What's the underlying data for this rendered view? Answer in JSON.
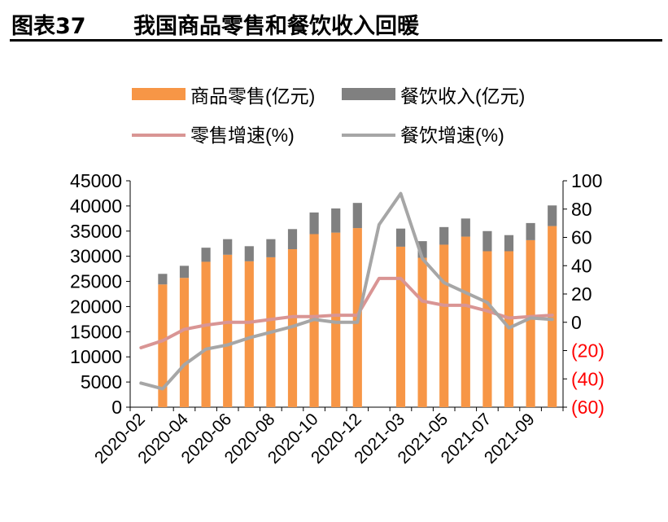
{
  "header": {
    "figure_label": "图表37",
    "title": "我国商品零售和餐饮收入回暖"
  },
  "colors": {
    "retail_bar": "#F79646",
    "catering_bar": "#808080",
    "retail_growth_line": "#D99594",
    "catering_growth_line": "#A6A6A6",
    "negative_tick": "#FF0000"
  },
  "chart_data": {
    "type": "bar",
    "stacked": true,
    "x_tick_labels": [
      "2020-02",
      "2020-04",
      "2020-06",
      "2020-08",
      "2020-10",
      "2020-12",
      "2021-03",
      "2021-05",
      "2021-07",
      "2021-09"
    ],
    "x": [
      "2020-02",
      "2020-03",
      "2020-04",
      "2020-05",
      "2020-06",
      "2020-07",
      "2020-08",
      "2020-09",
      "2020-10",
      "2020-11",
      "2020-12",
      "2021-01",
      "2021-03",
      "2021-04",
      "2021-05",
      "2021-06",
      "2021-07",
      "2021-08",
      "2021-09",
      "2021-10"
    ],
    "y_left": {
      "lim": [
        0,
        45000
      ],
      "ticks": [
        "0",
        "5000",
        "10000",
        "15000",
        "20000",
        "25000",
        "30000",
        "35000",
        "40000",
        "45000"
      ]
    },
    "y_right": {
      "lim": [
        -60,
        100
      ],
      "ticks": [
        "(60)",
        "(40)",
        "(20)",
        "0",
        "20",
        "40",
        "60",
        "80",
        "100"
      ]
    },
    "grid": false,
    "legend": "top",
    "series": [
      {
        "name": "商品零售(亿元)",
        "type": "bar",
        "axis": "left",
        "values": [
          null,
          24400,
          25700,
          28900,
          30300,
          29000,
          29800,
          31400,
          34400,
          34700,
          35600,
          null,
          31900,
          29700,
          32300,
          33900,
          31000,
          31000,
          33200,
          36000
        ]
      },
      {
        "name": "餐饮收入(亿元)",
        "type": "bar",
        "axis": "left",
        "values": [
          null,
          2100,
          2400,
          2800,
          3100,
          3000,
          3600,
          4000,
          4300,
          4800,
          5000,
          null,
          3600,
          3300,
          3500,
          3600,
          4000,
          3200,
          3400,
          4100
        ]
      },
      {
        "name": "零售增速(%)",
        "type": "line",
        "axis": "right",
        "values": [
          -18,
          -13,
          -5,
          -2,
          0,
          0,
          2,
          4,
          4,
          5,
          5,
          31,
          31,
          15,
          12,
          12,
          8,
          3,
          4,
          5
        ]
      },
      {
        "name": "餐饮增速(%)",
        "type": "line",
        "axis": "right",
        "values": [
          -43,
          -47,
          -30,
          -19,
          -16,
          -11,
          -7,
          -3,
          2,
          0,
          0,
          69,
          91,
          45,
          28,
          21,
          14,
          -4,
          3,
          2
        ]
      }
    ]
  }
}
